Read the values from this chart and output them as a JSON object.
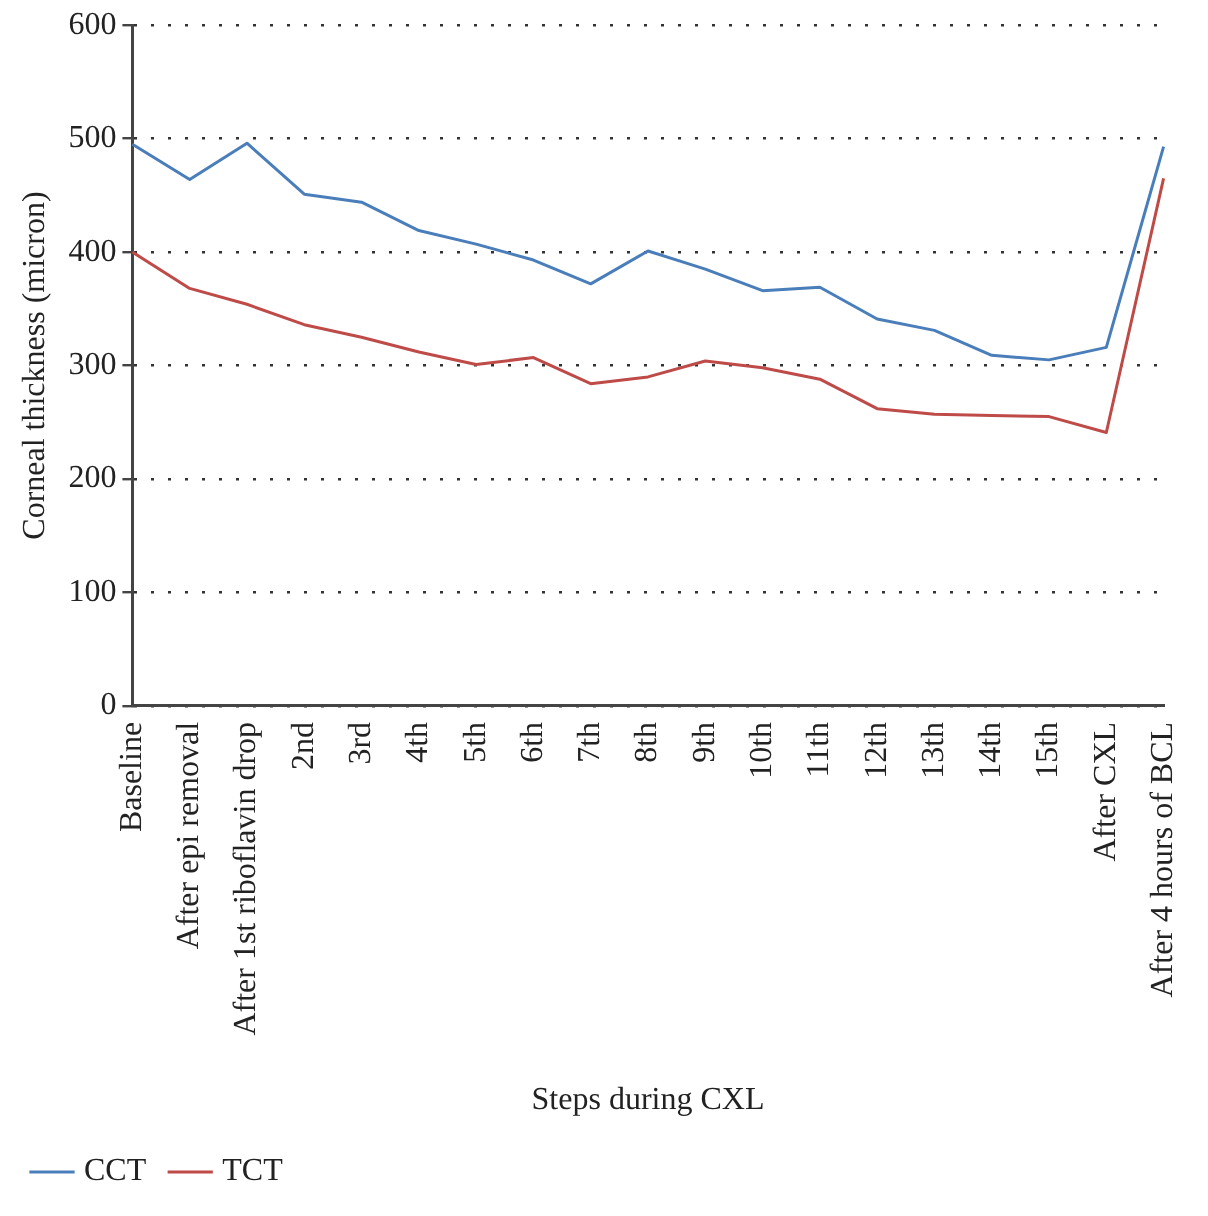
{
  "chart_data": {
    "type": "line",
    "xlabel": "Steps during CXL",
    "ylabel": "Corneal thickness (micron)",
    "categories": [
      "Baseline",
      "After epi removal",
      "After 1st riboflavin drop",
      "2nd",
      "3rd",
      "4th",
      "5th",
      "6th",
      "7th",
      "8th",
      "9th",
      "10th",
      "11th",
      "12th",
      "13th",
      "14th",
      "15th",
      "After CXL",
      "After 4 hours of BCL"
    ],
    "series": [
      {
        "name": "CCT",
        "color": "#4a7ebb",
        "values": [
          495,
          464,
          496,
          451,
          444,
          419,
          407,
          393,
          372,
          401,
          385,
          366,
          369,
          341,
          331,
          309,
          305,
          316,
          493
        ]
      },
      {
        "name": "TCT",
        "color": "#be4b48",
        "values": [
          400,
          368,
          354,
          336,
          325,
          312,
          301,
          307,
          284,
          290,
          304,
          298,
          288,
          262,
          257,
          256,
          255,
          241,
          465
        ]
      }
    ],
    "ylim": [
      0,
      600
    ],
    "yticks": [
      0,
      100,
      200,
      300,
      400,
      500,
      600
    ],
    "grid": "y",
    "legend": "bottom left",
    "marker": "none",
    "line_style": "solid"
  }
}
